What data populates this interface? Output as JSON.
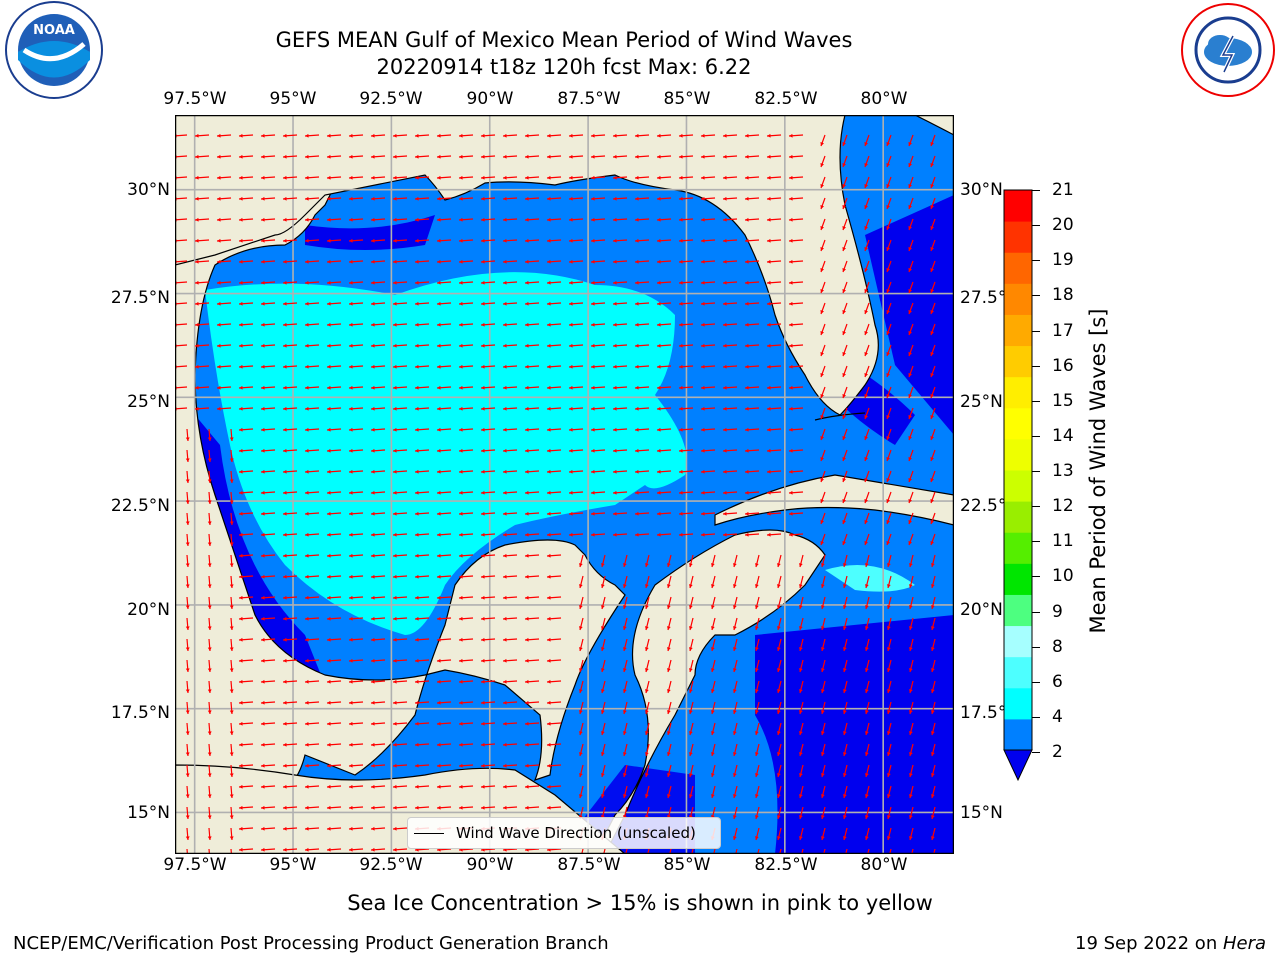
{
  "header": {
    "title_line1": "GEFS MEAN Gulf of Mexico Mean Period of Wind Waves",
    "title_line2": "20220914 t18z 120h fcst   Max: 6.22"
  },
  "logos": {
    "left": "NOAA",
    "left_ring_text": "NATIONAL OCEANIC AND ATMOSPHERIC ADMINISTRATION · U.S. DEPARTMENT OF COMMERCE",
    "right_ring_text": "NATIONAL WEATHER SERVICE"
  },
  "map": {
    "lon_ticks": [
      "97.5°W",
      "95°W",
      "92.5°W",
      "90°W",
      "87.5°W",
      "85°W",
      "82.5°W",
      "80°W"
    ],
    "lat_ticks": [
      "30°N",
      "27.5°N",
      "25°N",
      "22.5°N",
      "20°N",
      "17.5°N",
      "15°N"
    ],
    "lon_range": [
      -98,
      -78.2
    ],
    "lat_range": [
      14,
      31.8
    ],
    "legend_label": "Wind Wave Direction (unscaled)",
    "colors": {
      "land": "#efedd9",
      "band_2_4": "#0080ff",
      "band_lt2": "#0000ee",
      "band_4_6": "#00ffff",
      "band_6_8": "#4dffff",
      "arrow": "#ff0000",
      "grid": "#b0b0b0"
    }
  },
  "colorbar": {
    "label": "Mean Period of Wind Waves [s]",
    "ticks": [
      "21",
      "20",
      "19",
      "18",
      "17",
      "16",
      "15",
      "14",
      "13",
      "12",
      "11",
      "10",
      "9",
      "8",
      "6",
      "4",
      "2"
    ],
    "colors": [
      "#0080ff",
      "#00ffff",
      "#4dffff",
      "#a6ffff",
      "#4dff80",
      "#00e600",
      "#55ee00",
      "#99ee00",
      "#ccff00",
      "#eeff00",
      "#ffff00",
      "#ffee00",
      "#ffcc00",
      "#ffaa00",
      "#ff8800",
      "#ff6600",
      "#ff3300",
      "#ff0000"
    ],
    "extend_color": "#0000ee"
  },
  "subtitle": "Sea Ice Concentration > 15% is shown in pink to yellow",
  "footer": {
    "left": "NCEP/EMC/Verification Post Processing Product Generation Branch",
    "right_prefix": "19 Sep 2022 on ",
    "right_host": "Hera"
  }
}
